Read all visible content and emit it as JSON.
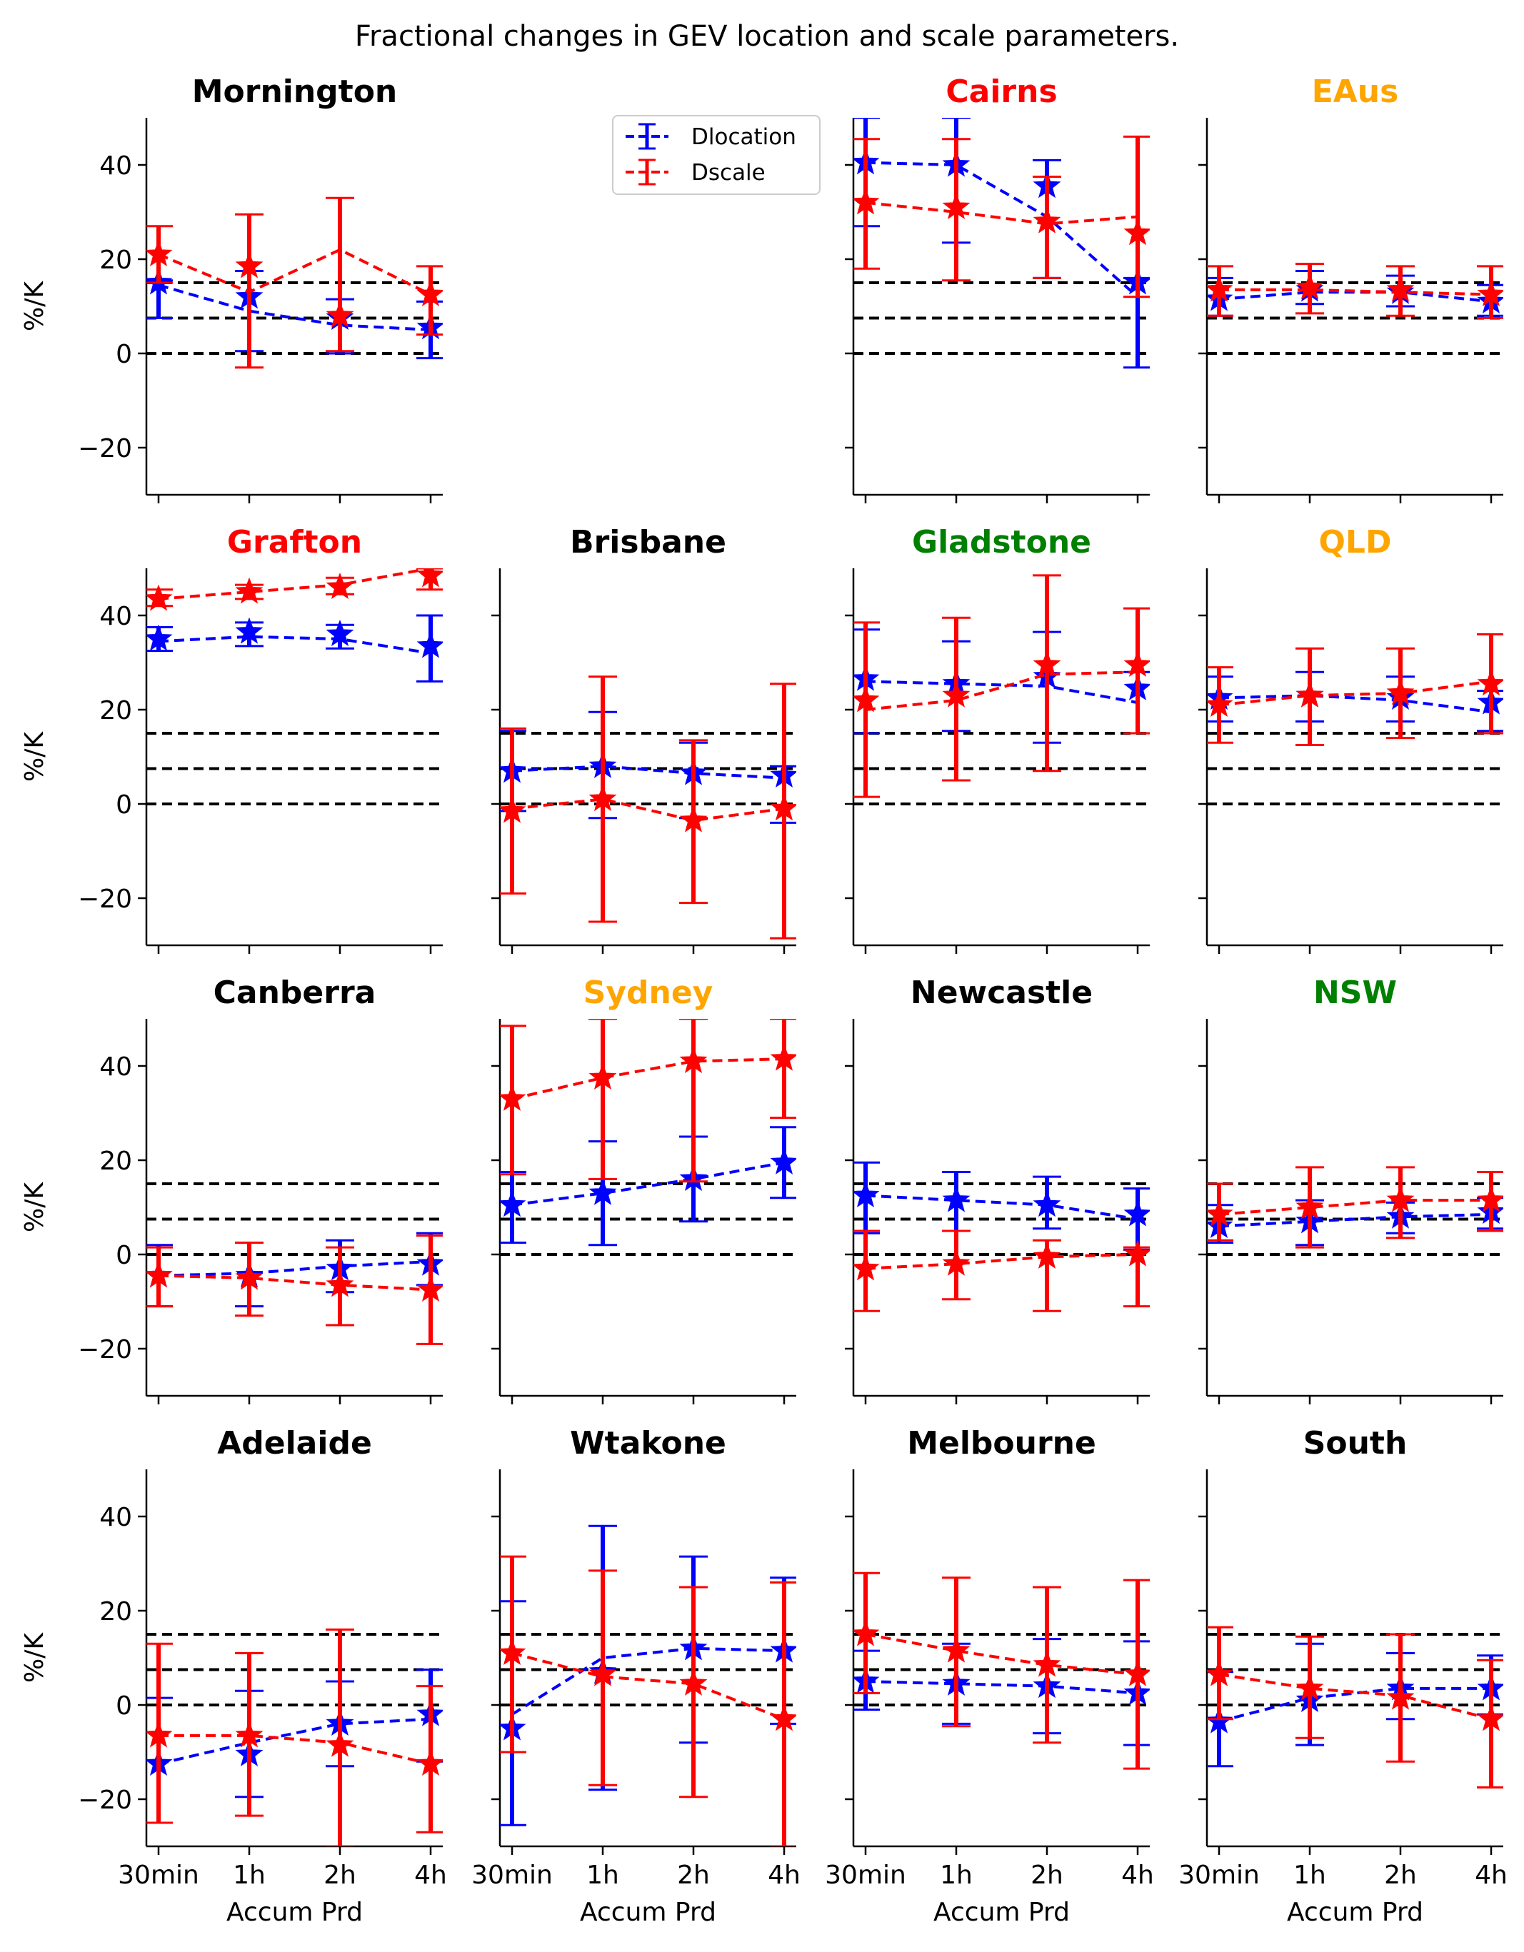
{
  "chart_data": {
    "type": "line",
    "title": "Fractional changes in GEV location and scale parameters.",
    "categories": [
      "30min",
      "1h",
      "2h",
      "4h"
    ],
    "xlabel": "Accum Prd",
    "ylabel": "%/K",
    "ylim": [
      -30,
      50
    ],
    "yticks": [
      -20,
      0,
      20,
      40
    ],
    "reference_lines": [
      0,
      7.5,
      15
    ],
    "legend": {
      "placement": "top-right of second panel column",
      "entries": [
        "Dlocation",
        "Dscale"
      ]
    },
    "series_colors": {
      "Dlocation": "#0000ff",
      "Dscale": "#ff0000"
    },
    "panels": [
      {
        "name": "Mornington",
        "title_color": "#000000",
        "series": [
          {
            "name": "Dlocation",
            "values": [
              14.5,
              9,
              6,
              5
            ],
            "stars": [
              15,
              12,
              7.5,
              5.5
            ],
            "err_low": [
              7.5,
              0.5,
              0,
              -1
            ],
            "err_high": [
              15.5,
              17.5,
              11.5,
              11
            ]
          },
          {
            "name": "Dscale",
            "values": [
              21,
              13,
              22,
              12.5
            ],
            "stars": [
              21,
              18.5,
              8,
              12.5
            ],
            "err_low": [
              15,
              -3,
              0.5,
              4
            ],
            "err_high": [
              27,
              29.5,
              33,
              18.5
            ]
          }
        ]
      },
      {
        "name": "",
        "empty": true
      },
      {
        "name": "Cairns",
        "title_color": "#ff0000",
        "series": [
          {
            "name": "Dlocation",
            "values": [
              40.5,
              40,
              29,
              12
            ],
            "stars": [
              40.5,
              40,
              35.5,
              15
            ],
            "err_low": [
              27,
              23.5,
              16,
              -3
            ],
            "err_high": [
              50,
              50,
              41,
              16
            ]
          },
          {
            "name": "Dscale",
            "values": [
              32,
              30,
              27.5,
              29
            ],
            "stars": [
              32,
              31,
              28,
              25.5
            ],
            "err_low": [
              18,
              15.5,
              16,
              12
            ],
            "err_high": [
              45.5,
              45.5,
              37.5,
              46
            ]
          }
        ]
      },
      {
        "name": "EAus",
        "title_color": "#ffa500",
        "series": [
          {
            "name": "Dlocation",
            "values": [
              11.5,
              13,
              13,
              11
            ],
            "stars": [
              11.5,
              13.5,
              13,
              11
            ],
            "err_low": [
              8,
              10.5,
              10,
              8
            ],
            "err_high": [
              16,
              17.5,
              16.5,
              14.5
            ]
          },
          {
            "name": "Dscale",
            "values": [
              13.5,
              13.5,
              13,
              12.5
            ],
            "stars": [
              13.5,
              14,
              13.5,
              12.5
            ],
            "err_low": [
              8,
              8.5,
              8,
              7.5
            ],
            "err_high": [
              18.5,
              19,
              18.5,
              18.5
            ]
          }
        ]
      },
      {
        "name": "Grafton",
        "title_color": "#ff0000",
        "series": [
          {
            "name": "Dlocation",
            "values": [
              34.5,
              35.5,
              35,
              32
            ],
            "stars": [
              35,
              36.5,
              36,
              33.5
            ],
            "err_low": [
              32.5,
              33.5,
              33,
              26
            ],
            "err_high": [
              37.5,
              38.5,
              38,
              40
            ]
          },
          {
            "name": "Dscale",
            "values": [
              43.5,
              45,
              46.5,
              50
            ],
            "stars": [
              43.5,
              45,
              46,
              48.5
            ],
            "err_low": [
              42,
              43.5,
              44.5,
              45.5
            ],
            "err_high": [
              45.5,
              46.5,
              48,
              50
            ]
          }
        ]
      },
      {
        "name": "Brisbane",
        "title_color": "#000000",
        "series": [
          {
            "name": "Dlocation",
            "values": [
              7,
              8,
              6.5,
              5.5
            ],
            "stars": [
              7,
              8,
              6.5,
              6
            ],
            "err_low": [
              -1.5,
              -3,
              -3,
              -4
            ],
            "err_high": [
              15.5,
              19.5,
              13,
              8
            ]
          },
          {
            "name": "Dscale",
            "values": [
              -1,
              1,
              -3.5,
              -1
            ],
            "stars": [
              -1.5,
              1,
              -3.5,
              -1
            ],
            "err_low": [
              -19,
              -25,
              -21,
              -28.5
            ],
            "err_high": [
              16,
              27,
              13.5,
              25.5
            ]
          }
        ]
      },
      {
        "name": "Gladstone",
        "title_color": "#008000",
        "series": [
          {
            "name": "Dlocation",
            "values": [
              26,
              25.5,
              25,
              21.5
            ],
            "stars": [
              26.5,
              25.5,
              27,
              24.5
            ],
            "err_low": [
              15,
              15.5,
              13,
              15
            ],
            "err_high": [
              37,
              34.5,
              36.5,
              28
            ]
          },
          {
            "name": "Dscale",
            "values": [
              20,
              22,
              27.5,
              28
            ],
            "stars": [
              22,
              23,
              29.5,
              29.5
            ],
            "err_low": [
              1.5,
              5,
              7,
              15
            ],
            "err_high": [
              38.5,
              39.5,
              48.5,
              41.5
            ]
          }
        ]
      },
      {
        "name": "QLD",
        "title_color": "#ffa500",
        "series": [
          {
            "name": "Dlocation",
            "values": [
              22.5,
              23,
              22,
              19.5
            ],
            "stars": [
              22.5,
              23,
              22.5,
              21.5
            ],
            "err_low": [
              17.5,
              17.5,
              17.5,
              15.5
            ],
            "err_high": [
              27,
              28,
              27,
              24
            ]
          },
          {
            "name": "Dscale",
            "values": [
              21,
              23,
              23.5,
              26
            ],
            "stars": [
              21,
              23,
              23.5,
              25.5
            ],
            "err_low": [
              13,
              12.5,
              14,
              15
            ],
            "err_high": [
              29,
              33,
              33,
              36
            ]
          }
        ]
      },
      {
        "name": "Canberra",
        "title_color": "#000000",
        "series": [
          {
            "name": "Dlocation",
            "values": [
              -4.5,
              -4,
              -2.5,
              -1.5
            ],
            "stars": [
              -4.5,
              -4.5,
              -3,
              -2
            ],
            "err_low": [
              -11,
              -11,
              -8,
              -6.5
            ],
            "err_high": [
              2,
              2.5,
              3,
              4.5
            ]
          },
          {
            "name": "Dscale",
            "values": [
              -4.5,
              -5,
              -6.5,
              -7.5
            ],
            "stars": [
              -4.5,
              -5,
              -6.5,
              -7.5
            ],
            "err_low": [
              -11,
              -13,
              -15,
              -19
            ],
            "err_high": [
              1.5,
              2.5,
              1.5,
              4
            ]
          }
        ]
      },
      {
        "name": "Sydney",
        "title_color": "#ffa500",
        "series": [
          {
            "name": "Dlocation",
            "values": [
              10.5,
              13,
              16,
              19.5
            ],
            "stars": [
              10.5,
              13,
              16,
              19.5
            ],
            "err_low": [
              2.5,
              2,
              7,
              12
            ],
            "err_high": [
              17.5,
              24,
              25,
              27
            ]
          },
          {
            "name": "Dscale",
            "values": [
              33,
              37.5,
              41,
              41.5
            ],
            "stars": [
              33,
              37.5,
              41,
              41.5
            ],
            "err_low": [
              17,
              16,
              15.5,
              29
            ],
            "err_high": [
              48.5,
              50,
              50,
              50
            ]
          }
        ]
      },
      {
        "name": "Newcastle",
        "title_color": "#000000",
        "series": [
          {
            "name": "Dlocation",
            "values": [
              12.5,
              11.5,
              10.5,
              7.5
            ],
            "stars": [
              12.5,
              11.5,
              10.5,
              8.5
            ],
            "err_low": [
              4.5,
              5,
              5.5,
              1
            ],
            "err_high": [
              19.5,
              17.5,
              16.5,
              14
            ]
          },
          {
            "name": "Dscale",
            "values": [
              -3,
              -2,
              -0.5,
              0
            ],
            "stars": [
              -3,
              -2,
              -0.5,
              0
            ],
            "err_low": [
              -12,
              -9.5,
              -12,
              -11
            ],
            "err_high": [
              5,
              5,
              3,
              1.5
            ]
          }
        ]
      },
      {
        "name": "NSW",
        "title_color": "#008000",
        "series": [
          {
            "name": "Dlocation",
            "values": [
              6,
              7,
              8,
              8.5
            ],
            "stars": [
              6,
              7,
              8,
              9
            ],
            "err_low": [
              2.5,
              2,
              4.5,
              5.5
            ],
            "err_high": [
              10.5,
              11.5,
              11,
              12
            ]
          },
          {
            "name": "Dscale",
            "values": [
              8.5,
              10,
              11.5,
              11.5
            ],
            "stars": [
              8.5,
              10,
              11.5,
              11.5
            ],
            "err_low": [
              3,
              1.5,
              3.5,
              5
            ],
            "err_high": [
              15,
              18.5,
              18.5,
              17.5
            ]
          }
        ]
      },
      {
        "name": "Adelaide",
        "title_color": "#000000",
        "series": [
          {
            "name": "Dlocation",
            "values": [
              -12.5,
              -8,
              -4,
              -3
            ],
            "stars": [
              -12.5,
              -10.5,
              -4,
              -2
            ],
            "err_low": [
              -25,
              -19.5,
              -13,
              -12
            ],
            "err_high": [
              1.5,
              3,
              5,
              7.5
            ]
          },
          {
            "name": "Dscale",
            "values": [
              -6.5,
              -6.5,
              -8,
              -12.5
            ],
            "stars": [
              -6.5,
              -6.5,
              -8.5,
              -12.5
            ],
            "err_low": [
              -25,
              -23.5,
              -30,
              -27
            ],
            "err_high": [
              13,
              11,
              16,
              4
            ]
          }
        ]
      },
      {
        "name": "Wtakone",
        "title_color": "#000000",
        "series": [
          {
            "name": "Dlocation",
            "values": [
              -2,
              10,
              12,
              11.5
            ],
            "stars": [
              -5,
              7,
              12,
              11.5
            ],
            "err_low": [
              -25.5,
              -18,
              -8,
              -4
            ],
            "err_high": [
              22,
              38,
              31.5,
              27
            ]
          },
          {
            "name": "Dscale",
            "values": [
              11,
              6,
              4.5,
              -3
            ],
            "stars": [
              11,
              6.5,
              4.5,
              -3
            ],
            "err_low": [
              -10,
              -17,
              -19.5,
              -30
            ],
            "err_high": [
              31.5,
              28.5,
              25,
              26
            ]
          }
        ]
      },
      {
        "name": "Melbourne",
        "title_color": "#000000",
        "series": [
          {
            "name": "Dlocation",
            "values": [
              5,
              4.5,
              4,
              2.5
            ],
            "stars": [
              5,
              4.5,
              4,
              2.5
            ],
            "err_low": [
              -1,
              -4,
              -6,
              -8.5
            ],
            "err_high": [
              11.5,
              13,
              14,
              13.5
            ]
          },
          {
            "name": "Dscale",
            "values": [
              15,
              11.5,
              8.5,
              6.5
            ],
            "stars": [
              15,
              11.5,
              8.5,
              6.5
            ],
            "err_low": [
              2.5,
              -4.5,
              -8,
              -13.5
            ],
            "err_high": [
              28,
              27,
              25,
              26.5
            ]
          }
        ]
      },
      {
        "name": "South",
        "title_color": "#000000",
        "series": [
          {
            "name": "Dlocation",
            "values": [
              -3.5,
              1.5,
              3.5,
              3.5
            ],
            "stars": [
              -3.5,
              1,
              3.5,
              3.5
            ],
            "err_low": [
              -13,
              -8.5,
              -3,
              -2
            ],
            "err_high": [
              7,
              13,
              11,
              10.5
            ]
          },
          {
            "name": "Dscale",
            "values": [
              6.5,
              3.5,
              2,
              -3
            ],
            "stars": [
              6.5,
              3.5,
              1.5,
              -3
            ],
            "err_low": [
              -3,
              -7,
              -12,
              -17.5
            ],
            "err_high": [
              16.5,
              14.5,
              15,
              9.5
            ]
          }
        ]
      }
    ]
  }
}
